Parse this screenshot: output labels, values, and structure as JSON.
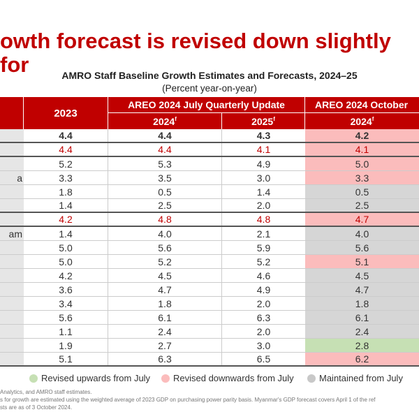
{
  "title": "owth forecast is revised down slightly for",
  "subtitle": "AMRO Staff Baseline Growth Estimates and Forecasts, 2024–25",
  "units": "(Percent year-on-year)",
  "header": {
    "col_2023": "2023",
    "july_group": "AREO 2024 July Quarterly Update",
    "oct_group": "AREO 2024 October",
    "july_2024": "2024",
    "july_2025": "2025",
    "oct_2024": "2024",
    "forecast_mark": "f"
  },
  "colors": {
    "accent": "#c00000",
    "up": "#c6e0b4",
    "down": "#fbbcbc",
    "same": "#d6d6d6"
  },
  "rows": [
    {
      "label": "",
      "v2023": "4.4",
      "j2024": "4.4",
      "j2025": "4.3",
      "o2024": "4.2",
      "status": "down",
      "style": "bold"
    },
    {
      "label": "",
      "v2023": "4.4",
      "j2024": "4.4",
      "j2025": "4.1",
      "o2024": "4.1",
      "status": "down",
      "style": "red"
    },
    {
      "label": "",
      "v2023": "5.2",
      "j2024": "5.3",
      "j2025": "4.9",
      "o2024": "5.0",
      "status": "down",
      "style": ""
    },
    {
      "label": "a",
      "v2023": "3.3",
      "j2024": "3.5",
      "j2025": "3.0",
      "o2024": "3.3",
      "status": "down",
      "style": ""
    },
    {
      "label": "",
      "v2023": "1.8",
      "j2024": "0.5",
      "j2025": "1.4",
      "o2024": "0.5",
      "status": "same",
      "style": ""
    },
    {
      "label": "",
      "v2023": "1.4",
      "j2024": "2.5",
      "j2025": "2.0",
      "o2024": "2.5",
      "status": "same",
      "style": ""
    },
    {
      "label": "",
      "v2023": "4.2",
      "j2024": "4.8",
      "j2025": "4.8",
      "o2024": "4.7",
      "status": "down",
      "style": "red"
    },
    {
      "label": "am",
      "v2023": "1.4",
      "j2024": "4.0",
      "j2025": "2.1",
      "o2024": "4.0",
      "status": "same",
      "style": ""
    },
    {
      "label": "",
      "v2023": "5.0",
      "j2024": "5.6",
      "j2025": "5.9",
      "o2024": "5.6",
      "status": "same",
      "style": ""
    },
    {
      "label": "",
      "v2023": "5.0",
      "j2024": "5.2",
      "j2025": "5.2",
      "o2024": "5.1",
      "status": "down",
      "style": ""
    },
    {
      "label": "",
      "v2023": "4.2",
      "j2024": "4.5",
      "j2025": "4.6",
      "o2024": "4.5",
      "status": "same",
      "style": ""
    },
    {
      "label": "",
      "v2023": "3.6",
      "j2024": "4.7",
      "j2025": "4.9",
      "o2024": "4.7",
      "status": "same",
      "style": ""
    },
    {
      "label": "",
      "v2023": "3.4",
      "j2024": "1.8",
      "j2025": "2.0",
      "o2024": "1.8",
      "status": "same",
      "style": ""
    },
    {
      "label": "",
      "v2023": "5.6",
      "j2024": "6.1",
      "j2025": "6.3",
      "o2024": "6.1",
      "status": "same",
      "style": ""
    },
    {
      "label": "",
      "v2023": "1.1",
      "j2024": "2.4",
      "j2025": "2.0",
      "o2024": "2.4",
      "status": "same",
      "style": ""
    },
    {
      "label": "",
      "v2023": "1.9",
      "j2024": "2.7",
      "j2025": "3.0",
      "o2024": "2.8",
      "status": "up",
      "style": ""
    },
    {
      "label": "",
      "v2023": "5.1",
      "j2024": "6.3",
      "j2025": "6.5",
      "o2024": "6.2",
      "status": "down",
      "style": ""
    }
  ],
  "legend": {
    "up": "Revised upwards from July",
    "down": "Revised downwards from July",
    "same": "Maintained from July"
  },
  "footnotes": [
    "Analytics, and AMRO staff estimates.",
    "s for growth are estimated using the weighted average of 2023 GDP on purchasing power parity basis. Myanmar's GDP forecast covers April 1 of the ref",
    "sts are as of 3 October 2024."
  ]
}
